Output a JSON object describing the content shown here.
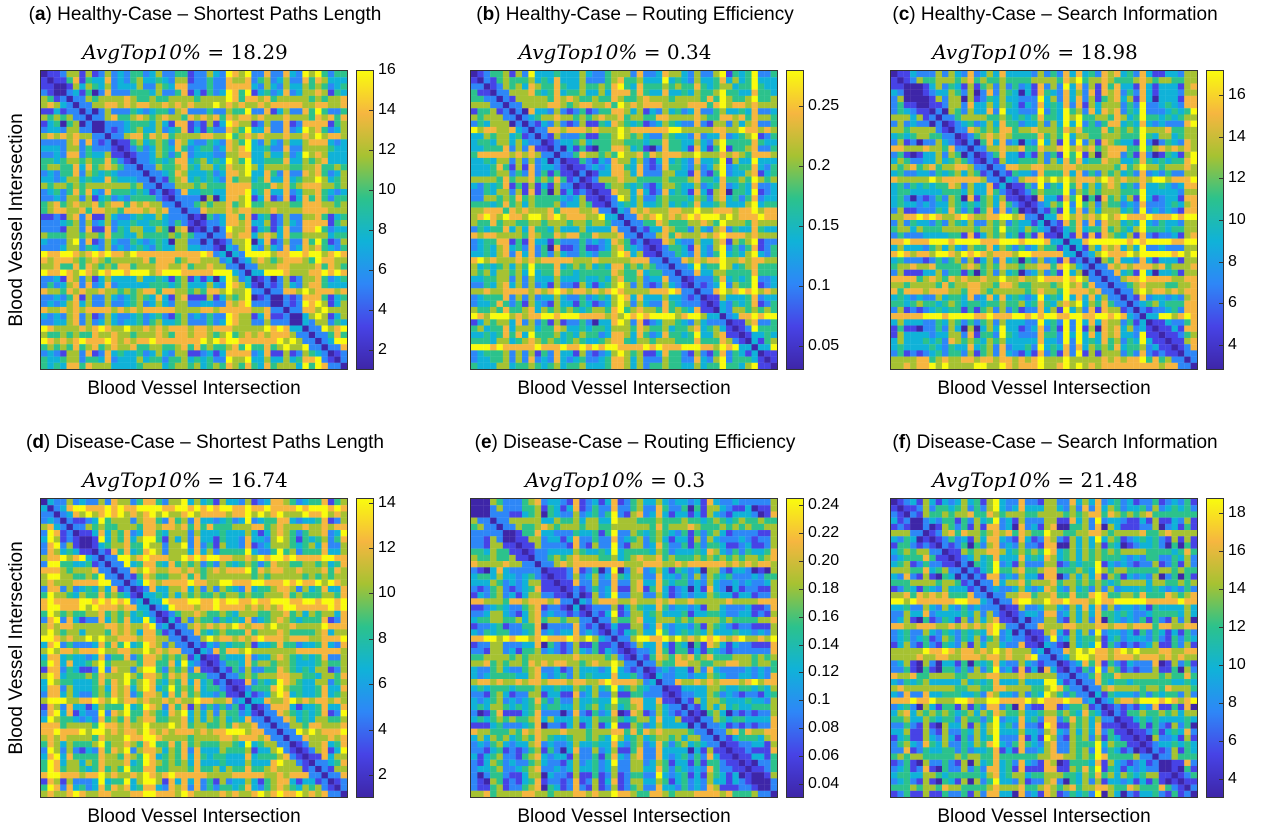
{
  "colormap": [
    "#3e26a8",
    "#4743e6",
    "#2e87f7",
    "#10b2d8",
    "#2cc28c",
    "#a6c232",
    "#f6b640",
    "#f9fb0e"
  ],
  "chart_data": [
    {
      "type": "heatmap",
      "panel_letter": "a",
      "title": "Healthy-Case – Shortest Paths Length",
      "annotation": {
        "name": "AvgTop10%",
        "value": "18.29"
      },
      "xlabel": "Blood Vessel Intersection",
      "ylabel": "Blood Vessel Intersection",
      "colorbar": {
        "range": [
          1,
          16
        ],
        "ticks": [
          2,
          4,
          6,
          8,
          10,
          12,
          14,
          16
        ]
      }
    },
    {
      "type": "heatmap",
      "panel_letter": "b",
      "title": "Healthy-Case – Routing Efficiency",
      "annotation": {
        "name": "AvgTop10%",
        "value": "0.34"
      },
      "xlabel": "Blood Vessel Intersection",
      "ylabel": "",
      "colorbar": {
        "range": [
          0.03,
          0.28
        ],
        "ticks": [
          "0.05",
          "0.1",
          "0.15",
          "0.2",
          "0.25"
        ]
      }
    },
    {
      "type": "heatmap",
      "panel_letter": "c",
      "title": "Healthy-Case – Search Information",
      "annotation": {
        "name": "AvgTop10%",
        "value": "18.98"
      },
      "xlabel": "Blood Vessel Intersection",
      "ylabel": "",
      "colorbar": {
        "range": [
          2.8,
          17.2
        ],
        "ticks": [
          4,
          6,
          8,
          10,
          12,
          14,
          16
        ]
      }
    },
    {
      "type": "heatmap",
      "panel_letter": "d",
      "title": "Disease-Case – Shortest Paths Length",
      "annotation": {
        "name": "AvgTop10%",
        "value": "16.74"
      },
      "xlabel": "Blood Vessel Intersection",
      "ylabel": "Blood Vessel Intersection",
      "colorbar": {
        "range": [
          1,
          14.2
        ],
        "ticks": [
          2,
          4,
          6,
          8,
          10,
          12,
          14
        ]
      }
    },
    {
      "type": "heatmap",
      "panel_letter": "e",
      "title": "Disease-Case – Routing Efficiency",
      "annotation": {
        "name": "AvgTop10%",
        "value": "0.3"
      },
      "xlabel": "Blood Vessel Intersection",
      "ylabel": "",
      "colorbar": {
        "range": [
          0.03,
          0.245
        ],
        "ticks": [
          "0.04",
          "0.06",
          "0.08",
          "0.1",
          "0.12",
          "0.14",
          "0.16",
          "0.18",
          "0.20",
          "0.22",
          "0.24"
        ]
      }
    },
    {
      "type": "heatmap",
      "panel_letter": "f",
      "title": "Disease-Case – Search Information",
      "annotation": {
        "name": "AvgTop10%",
        "value": "21.48"
      },
      "xlabel": "Blood Vessel Intersection",
      "ylabel": "",
      "colorbar": {
        "range": [
          3,
          18.8
        ],
        "ticks": [
          4,
          6,
          8,
          10,
          12,
          14,
          16,
          18
        ]
      }
    }
  ]
}
